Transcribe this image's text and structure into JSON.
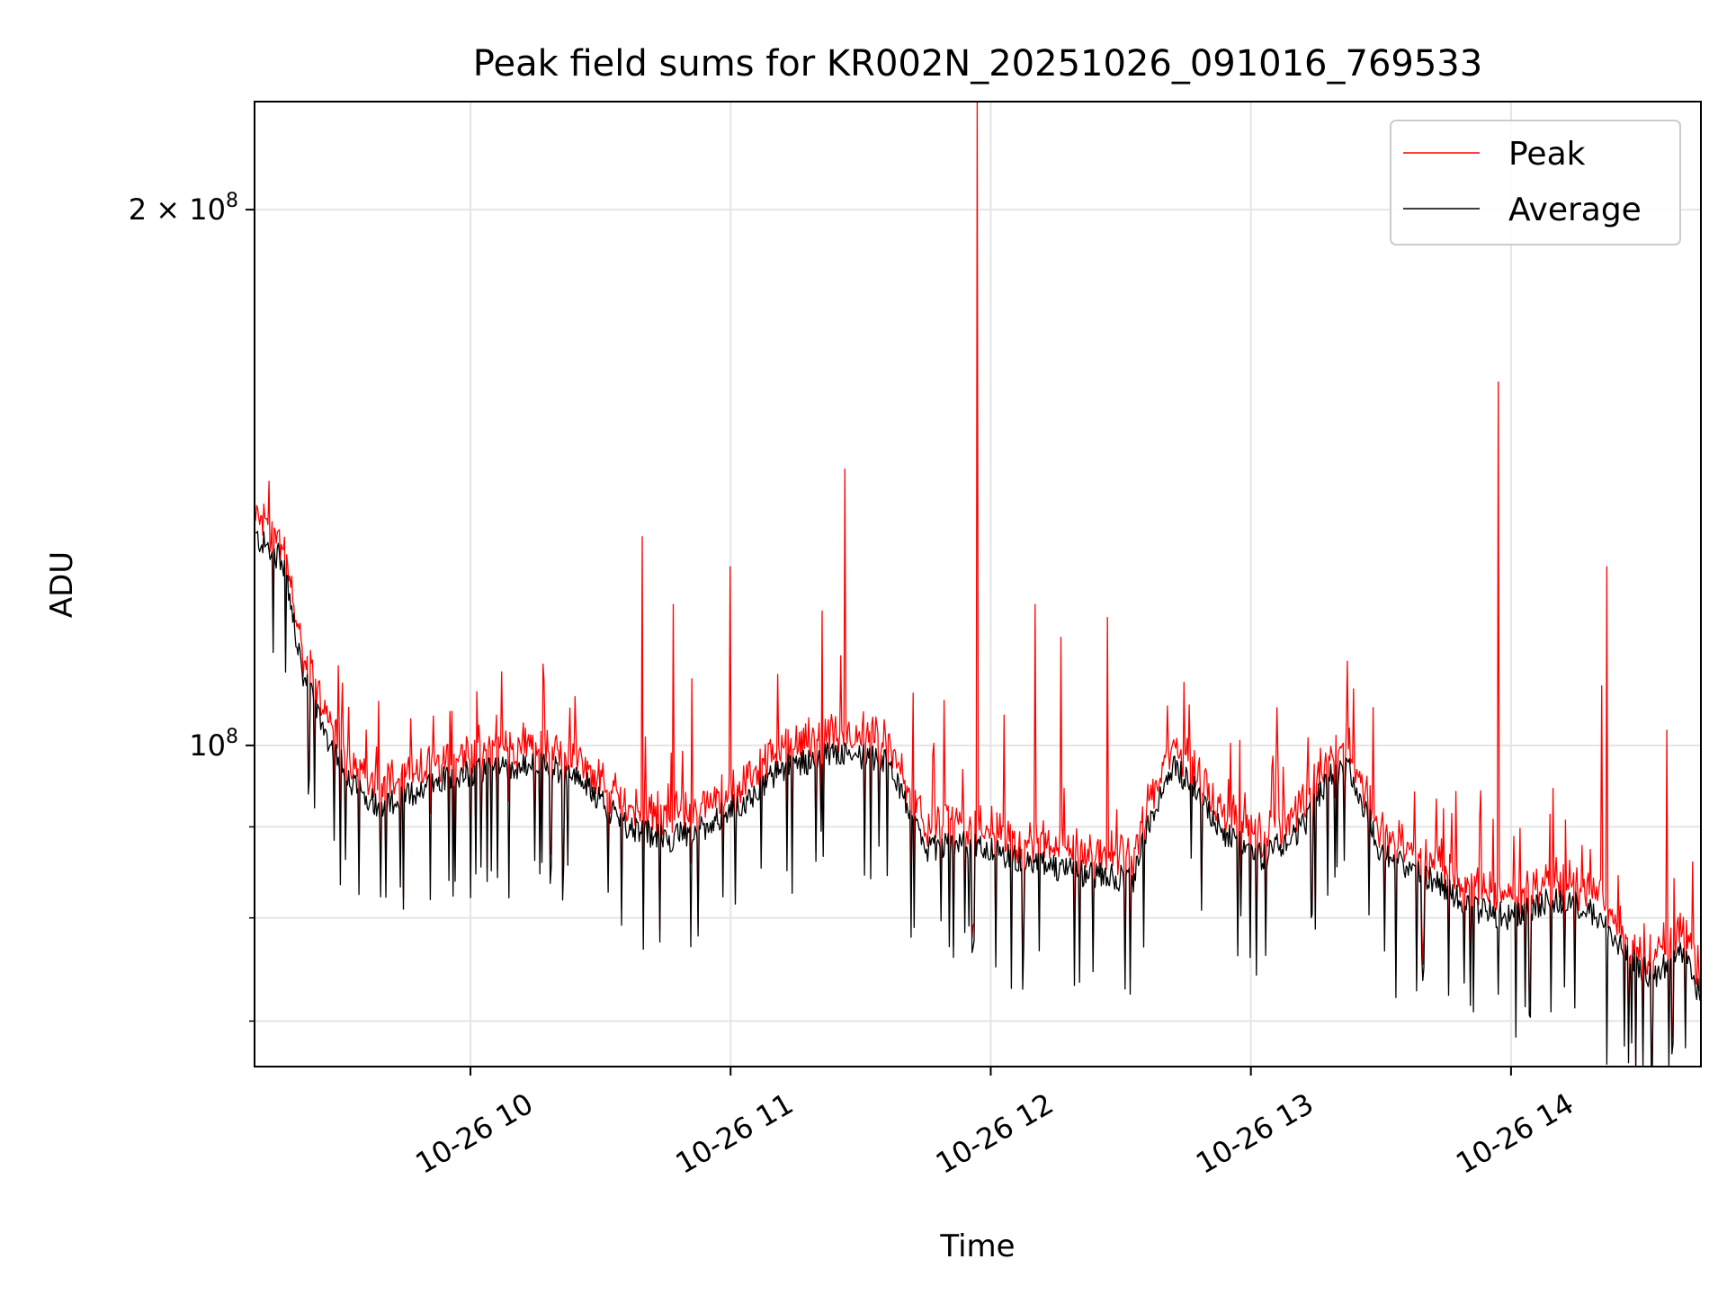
{
  "chart_data": {
    "type": "line",
    "title": "Peak field sums for KR002N_20251026_091016_769533",
    "xlabel": "Time",
    "ylabel": "ADU",
    "yscale": "log",
    "xlim": [
      9.17,
      14.73
    ],
    "ylim": [
      66000000,
      230000000
    ],
    "grid": true,
    "legend_position": "top-right",
    "x_ticks": [
      {
        "value": 10,
        "label": "10-26 10"
      },
      {
        "value": 11,
        "label": "10-26 11"
      },
      {
        "value": 12,
        "label": "10-26 12"
      },
      {
        "value": 13,
        "label": "10-26 13"
      },
      {
        "value": 14,
        "label": "10-26 14"
      }
    ],
    "y_major_ticks": [
      {
        "value": 100000000,
        "base": "10",
        "exp": "8",
        "mult": ""
      },
      {
        "value": 200000000,
        "base": "10",
        "exp": "8",
        "mult": "2 × "
      }
    ],
    "y_minor_ticks": [
      70000000,
      80000000,
      90000000
    ],
    "series_style": [
      {
        "name": "Peak",
        "color": "#ff0000"
      },
      {
        "name": "Average",
        "color": "#000000"
      }
    ],
    "average_trend": [
      [
        9.17,
        131000000
      ],
      [
        9.28,
        127000000
      ],
      [
        9.35,
        110000000
      ],
      [
        9.45,
        101000000
      ],
      [
        9.55,
        95000000
      ],
      [
        9.65,
        92500000
      ],
      [
        9.78,
        94000000
      ],
      [
        9.9,
        96000000
      ],
      [
        10.1,
        97000000
      ],
      [
        10.3,
        97500000
      ],
      [
        10.45,
        95000000
      ],
      [
        10.58,
        90500000
      ],
      [
        10.75,
        88500000
      ],
      [
        10.9,
        90000000
      ],
      [
        11.05,
        93000000
      ],
      [
        11.2,
        97000000
      ],
      [
        11.4,
        99000000
      ],
      [
        11.6,
        98000000
      ],
      [
        11.68,
        92000000
      ],
      [
        11.75,
        87500000
      ],
      [
        11.9,
        88000000
      ],
      [
        12.1,
        86500000
      ],
      [
        12.3,
        85000000
      ],
      [
        12.55,
        84000000
      ],
      [
        12.6,
        90000000
      ],
      [
        12.7,
        97500000
      ],
      [
        12.8,
        94000000
      ],
      [
        12.9,
        89000000
      ],
      [
        13.05,
        86500000
      ],
      [
        13.2,
        90000000
      ],
      [
        13.3,
        96000000
      ],
      [
        13.38,
        97000000
      ],
      [
        13.5,
        87000000
      ],
      [
        13.7,
        84000000
      ],
      [
        13.85,
        81000000
      ],
      [
        14.0,
        80000000
      ],
      [
        14.15,
        82000000
      ],
      [
        14.3,
        81000000
      ],
      [
        14.45,
        76000000
      ],
      [
        14.55,
        74000000
      ],
      [
        14.65,
        77000000
      ],
      [
        14.73,
        72000000
      ]
    ],
    "peak_spikes": [
      {
        "x": 9.6,
        "y": 102000000
      },
      {
        "x": 9.77,
        "y": 103500000
      },
      {
        "x": 9.93,
        "y": 104500000
      },
      {
        "x": 10.1,
        "y": 104000000
      },
      {
        "x": 10.12,
        "y": 110000000
      },
      {
        "x": 10.28,
        "y": 108000000
      },
      {
        "x": 10.43,
        "y": 97000000
      },
      {
        "x": 10.66,
        "y": 131000000
      },
      {
        "x": 10.78,
        "y": 120000000
      },
      {
        "x": 10.85,
        "y": 109000000
      },
      {
        "x": 11.0,
        "y": 126000000
      },
      {
        "x": 11.35,
        "y": 119000000
      },
      {
        "x": 11.44,
        "y": 143000000
      },
      {
        "x": 11.7,
        "y": 107000000
      },
      {
        "x": 11.82,
        "y": 106000000
      },
      {
        "x": 11.95,
        "y": 230000000
      },
      {
        "x": 12.05,
        "y": 104000000
      },
      {
        "x": 12.17,
        "y": 120000000
      },
      {
        "x": 12.27,
        "y": 115000000
      },
      {
        "x": 12.45,
        "y": 118000000
      },
      {
        "x": 13.1,
        "y": 105000000
      },
      {
        "x": 13.22,
        "y": 101000000
      },
      {
        "x": 13.47,
        "y": 105000000
      },
      {
        "x": 13.95,
        "y": 160000000
      },
      {
        "x": 14.35,
        "y": 108000000
      },
      {
        "x": 14.37,
        "y": 126000000
      },
      {
        "x": 14.6,
        "y": 102000000
      },
      {
        "x": 14.7,
        "y": 86000000
      }
    ]
  }
}
